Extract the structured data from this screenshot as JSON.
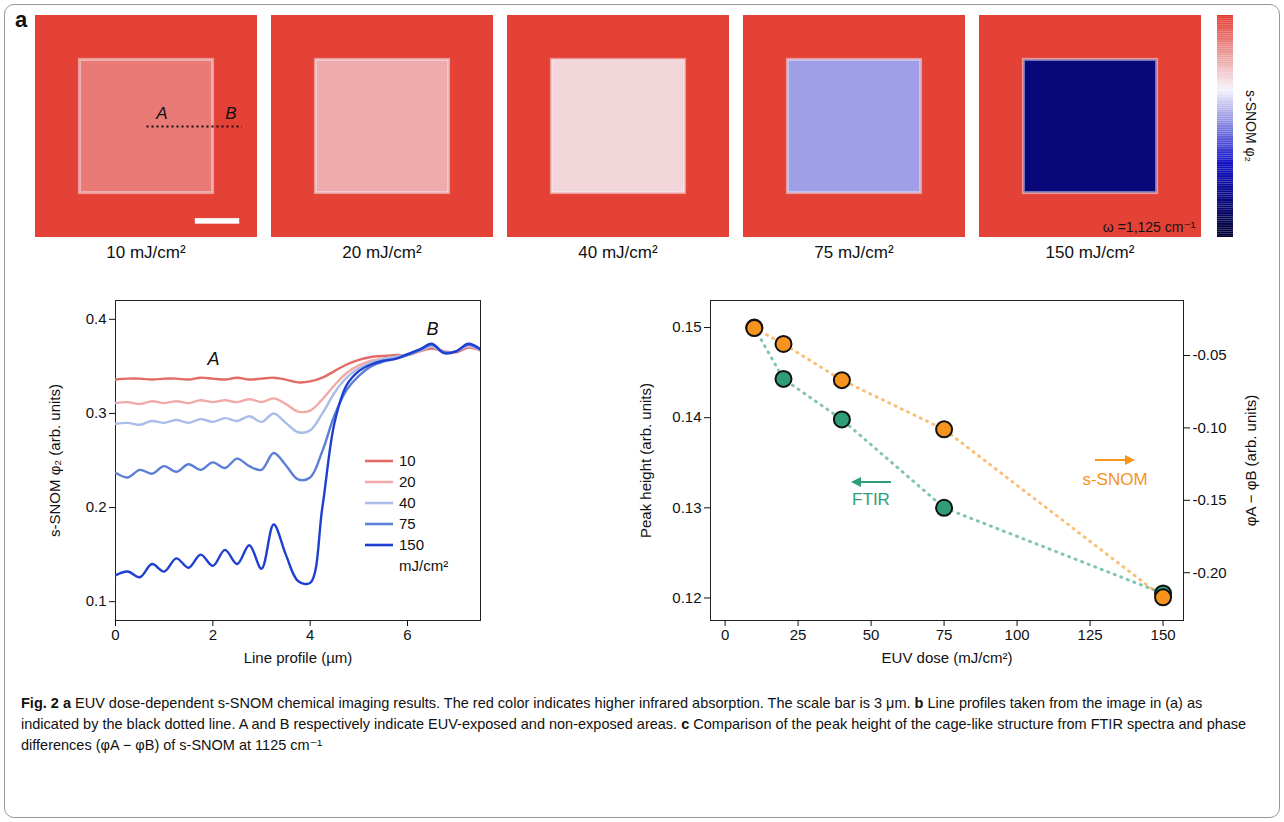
{
  "chart_data": [
    {
      "panel": "a",
      "type": "image",
      "images": [
        {
          "label": "10 mJ/cm²",
          "inside": 0.336,
          "outside": 0.366
        },
        {
          "label": "20 mJ/cm²",
          "inside": 0.311,
          "outside": 0.366
        },
        {
          "label": "40 mJ/cm²",
          "inside": 0.289,
          "outside": 0.366
        },
        {
          "label": "75 mJ/cm²",
          "inside": 0.237,
          "outside": 0.366
        },
        {
          "label": "150 mJ/cm²",
          "inside": 0.128,
          "outside": 0.366
        }
      ],
      "markers": [
        "A",
        "B"
      ],
      "annotation": "ω =1,125 cm⁻¹",
      "colorbar": {
        "label": "s-SNOM φ₂",
        "range": [
          0.08,
          0.37
        ]
      }
    },
    {
      "panel": "b",
      "type": "line",
      "x_label": "Line profile (µm)",
      "y_label": "s-SNOM φ₂ (arb. units)",
      "xlim": [
        0,
        7.5
      ],
      "xticks": [
        0,
        2,
        4,
        6
      ],
      "ylim": [
        0.08,
        0.42
      ],
      "yticks": [
        0.1,
        0.2,
        0.3,
        0.4
      ],
      "markers": [
        "A",
        "B"
      ],
      "legend": "lower right",
      "legend_title": "mJ/cm²",
      "x": [
        0,
        0.25,
        0.5,
        0.75,
        1,
        1.25,
        1.5,
        1.75,
        2,
        2.25,
        2.5,
        2.75,
        3,
        3.25,
        3.5,
        3.75,
        4,
        4.25,
        4.5,
        4.75,
        5,
        5.25,
        5.5,
        5.75,
        6,
        6.25,
        6.5,
        6.75,
        7,
        7.25,
        7.5
      ],
      "series": [
        {
          "name": "10",
          "color": "#e46a66",
          "values": [
            0.336,
            0.337,
            0.337,
            0.336,
            0.337,
            0.337,
            0.336,
            0.338,
            0.337,
            0.336,
            0.338,
            0.336,
            0.337,
            0.338,
            0.336,
            0.333,
            0.334,
            0.338,
            0.345,
            0.352,
            0.357,
            0.36,
            0.361,
            0.362,
            0.362,
            0.366,
            0.369,
            0.366,
            0.365,
            0.37,
            0.367
          ]
        },
        {
          "name": "20",
          "color": "#f2aaa8",
          "values": [
            0.311,
            0.312,
            0.31,
            0.313,
            0.311,
            0.313,
            0.311,
            0.314,
            0.312,
            0.314,
            0.312,
            0.315,
            0.312,
            0.316,
            0.31,
            0.302,
            0.303,
            0.315,
            0.33,
            0.343,
            0.351,
            0.356,
            0.358,
            0.36,
            0.362,
            0.366,
            0.371,
            0.365,
            0.366,
            0.371,
            0.367
          ]
        },
        {
          "name": "40",
          "color": "#a9bde8",
          "values": [
            0.289,
            0.29,
            0.288,
            0.292,
            0.29,
            0.293,
            0.29,
            0.294,
            0.291,
            0.295,
            0.292,
            0.297,
            0.291,
            0.3,
            0.29,
            0.28,
            0.282,
            0.3,
            0.322,
            0.338,
            0.348,
            0.354,
            0.358,
            0.36,
            0.363,
            0.367,
            0.371,
            0.365,
            0.366,
            0.372,
            0.367
          ]
        },
        {
          "name": "75",
          "color": "#5b7fd6",
          "values": [
            0.237,
            0.232,
            0.24,
            0.236,
            0.244,
            0.238,
            0.246,
            0.24,
            0.248,
            0.242,
            0.252,
            0.244,
            0.24,
            0.258,
            0.245,
            0.23,
            0.232,
            0.26,
            0.298,
            0.325,
            0.34,
            0.35,
            0.355,
            0.358,
            0.362,
            0.367,
            0.373,
            0.365,
            0.366,
            0.373,
            0.368
          ]
        },
        {
          "name": "150",
          "color": "#1f3fd0",
          "values": [
            0.128,
            0.132,
            0.126,
            0.14,
            0.132,
            0.146,
            0.136,
            0.15,
            0.138,
            0.155,
            0.14,
            0.16,
            0.135,
            0.182,
            0.15,
            0.122,
            0.12,
            0.2,
            0.29,
            0.33,
            0.345,
            0.352,
            0.356,
            0.358,
            0.363,
            0.368,
            0.374,
            0.364,
            0.366,
            0.374,
            0.368
          ]
        }
      ]
    },
    {
      "panel": "c",
      "type": "line",
      "x_label": "EUV dose (mJ/cm²)",
      "y_label": "Peak height (arb. units)",
      "y2_label": "φA − φB (arb. units)",
      "xlim": [
        -5,
        157
      ],
      "xticks": [
        0,
        25,
        50,
        75,
        100,
        125,
        150
      ],
      "ylim": [
        0.1175,
        0.153
      ],
      "yticks": [
        0.12,
        0.13,
        0.14,
        0.15
      ],
      "y2lim": [
        -0.233,
        -0.012
      ],
      "y2ticks": [
        {
          "value": -0.05,
          "label": "-0.05"
        },
        {
          "value": -0.1,
          "label": "-0.10"
        },
        {
          "value": -0.15,
          "label": "-0.15"
        },
        {
          "value": -0.2,
          "label": "-0.20"
        }
      ],
      "x": [
        10,
        20,
        40,
        75,
        150
      ],
      "series": [
        {
          "name": "FTIR",
          "color": "#2f9e78",
          "marker": "circle",
          "line_style": "dotted",
          "values": [
            0.15,
            0.1443,
            0.1398,
            0.13,
            0.1205
          ]
        },
        {
          "name": "s-SNOM",
          "color": "#f7941d",
          "marker": "circle",
          "line_style": "dotted",
          "axis": "y2",
          "values": [
            -0.031,
            -0.042,
            -0.067,
            -0.101,
            -0.217
          ]
        }
      ]
    }
  ],
  "caption": {
    "figure": "Fig. 2",
    "parts": [
      {
        "letter": "a",
        "text": "EUV dose-dependent s-SNOM chemical imaging results. The red color indicates higher infrared absorption. The scale bar is 3 μm."
      },
      {
        "letter": "b",
        "text": "Line profiles taken from the image in (a) as indicated by the black dotted line. A and B respectively indicate EUV-exposed and non-exposed areas."
      },
      {
        "letter": "c",
        "text": "Comparison of the peak height of the cage-like structure from FTIR spectra and phase differences (φA − φB) of s-SNOM at 1125 cm⁻¹"
      }
    ]
  }
}
